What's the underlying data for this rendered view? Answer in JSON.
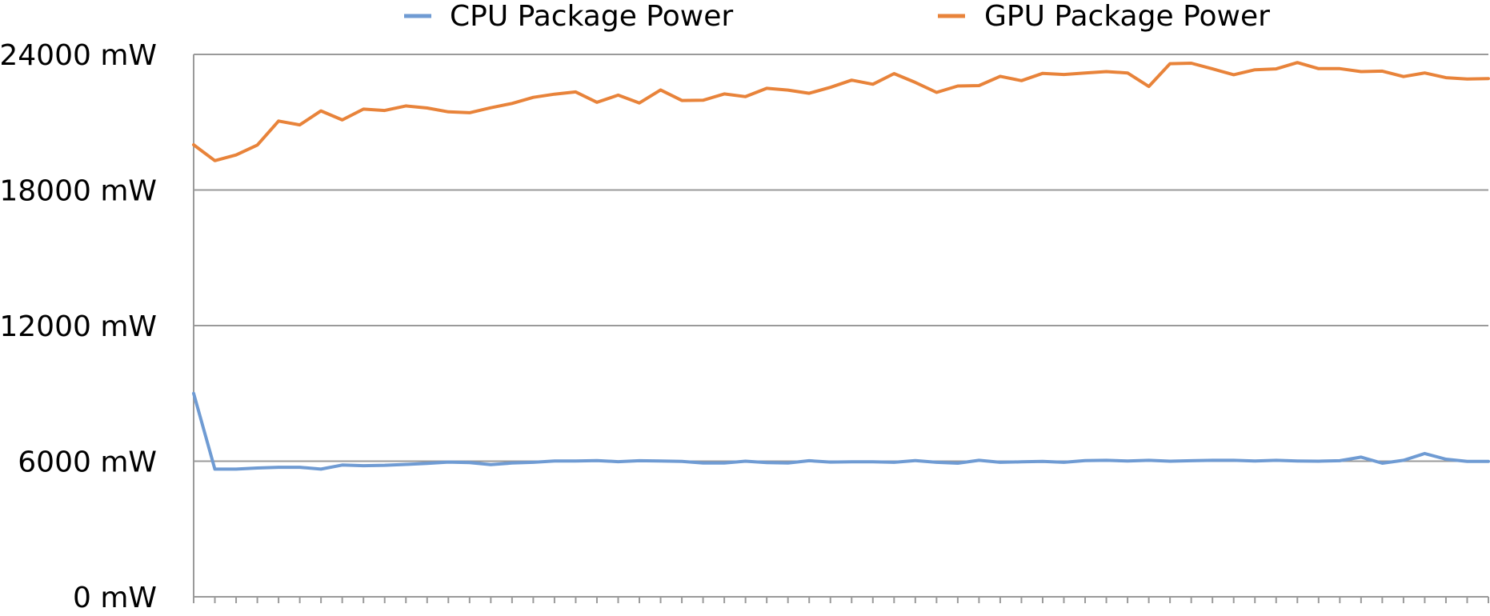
{
  "chart_data": {
    "type": "line",
    "title": "",
    "xlabel": "",
    "ylabel": "",
    "ylim": [
      0,
      24000
    ],
    "y_ticks": [
      {
        "value": 0,
        "label": "0 mW"
      },
      {
        "value": 6000,
        "label": "6000 mW"
      },
      {
        "value": 12000,
        "label": "12000 mW"
      },
      {
        "value": 18000,
        "label": "18000 mW"
      },
      {
        "value": 24000,
        "label": "24000 mW"
      }
    ],
    "grid": true,
    "legend": "top",
    "x_count": 62,
    "series": [
      {
        "name": "CPU Package Power",
        "color": "#6f9bd3",
        "values": [
          9000,
          5650,
          5650,
          5700,
          5730,
          5730,
          5650,
          5830,
          5800,
          5820,
          5860,
          5900,
          5960,
          5940,
          5850,
          5920,
          5950,
          6010,
          6010,
          6030,
          5980,
          6020,
          6010,
          5990,
          5920,
          5920,
          6000,
          5940,
          5920,
          6020,
          5960,
          5970,
          5970,
          5950,
          6030,
          5950,
          5910,
          6040,
          5950,
          5970,
          5990,
          5950,
          6030,
          6040,
          6010,
          6040,
          6000,
          6020,
          6040,
          6040,
          6010,
          6040,
          6010,
          6000,
          6020,
          6180,
          5910,
          6040,
          6340,
          6090,
          5990,
          5990
        ]
      },
      {
        "name": "GPU Package Power",
        "color": "#e8833a",
        "values": [
          20000,
          19300,
          19550,
          19990,
          21050,
          20880,
          21500,
          21100,
          21580,
          21520,
          21720,
          21630,
          21460,
          21420,
          21640,
          21830,
          22100,
          22240,
          22340,
          21880,
          22200,
          21850,
          22430,
          21960,
          21970,
          22250,
          22130,
          22500,
          22420,
          22280,
          22540,
          22860,
          22680,
          23150,
          22760,
          22320,
          22600,
          22620,
          23030,
          22840,
          23160,
          23110,
          23180,
          23240,
          23180,
          22580,
          23590,
          23610,
          23360,
          23100,
          23320,
          23360,
          23640,
          23370,
          23370,
          23240,
          23260,
          23020,
          23180,
          22970,
          22910,
          22930
        ]
      }
    ]
  }
}
